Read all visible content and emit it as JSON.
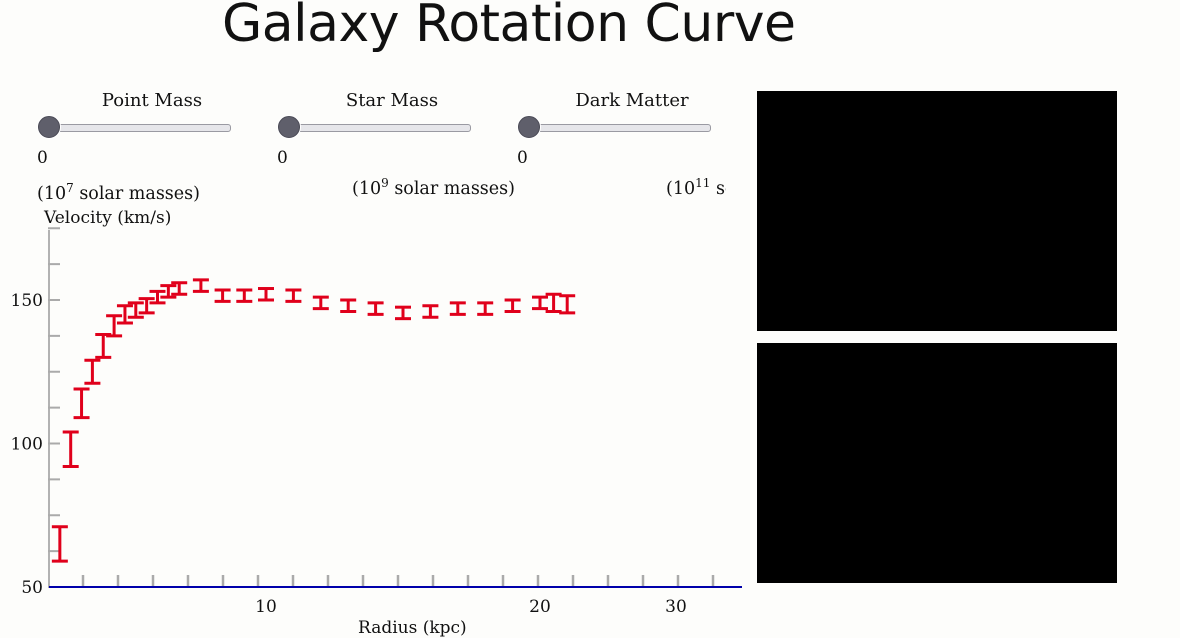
{
  "title": "Galaxy Rotation Curve",
  "sliders": [
    {
      "label": "Point Mass",
      "value": "0",
      "units_base": "(10",
      "units_exp": "7",
      "units_suffix": " solar masses)"
    },
    {
      "label": "Star Mass",
      "value": "0",
      "units_base": "(10",
      "units_exp": "9",
      "units_suffix": " solar masses)"
    },
    {
      "label": "Dark Matter",
      "value": "0",
      "units_base": "(10",
      "units_exp": "11",
      "units_suffix": " solar masses)"
    }
  ],
  "colors": {
    "points": "#e0001b",
    "x_axis": "#0000aa",
    "y_axis": "#999999",
    "ticks": "#aaaaaa",
    "panel": "#000000"
  },
  "chart_data": {
    "type": "scatter",
    "xlabel": "Radius (kpc)",
    "ylabel": "Velocity (km/s)",
    "x_ticks": [
      10,
      20,
      30
    ],
    "y_ticks": [
      50,
      100,
      150
    ],
    "ylim": [
      50,
      175
    ],
    "points": [
      {
        "x": 0.5,
        "y": 65,
        "err": 6
      },
      {
        "x": 1.0,
        "y": 98,
        "err": 6
      },
      {
        "x": 1.5,
        "y": 114,
        "err": 5
      },
      {
        "x": 2.0,
        "y": 125,
        "err": 4
      },
      {
        "x": 2.5,
        "y": 134,
        "err": 4
      },
      {
        "x": 3.0,
        "y": 141,
        "err": 3.5
      },
      {
        "x": 3.5,
        "y": 145,
        "err": 3
      },
      {
        "x": 4.0,
        "y": 146.5,
        "err": 2.5
      },
      {
        "x": 4.5,
        "y": 148,
        "err": 2.5
      },
      {
        "x": 5.0,
        "y": 151,
        "err": 2
      },
      {
        "x": 5.5,
        "y": 153,
        "err": 2
      },
      {
        "x": 6.0,
        "y": 154,
        "err": 2
      },
      {
        "x": 7.0,
        "y": 155,
        "err": 2
      },
      {
        "x": 8.0,
        "y": 151.5,
        "err": 2
      },
      {
        "x": 9.0,
        "y": 151.5,
        "err": 2
      },
      {
        "x": 10.0,
        "y": 152,
        "err": 2
      },
      {
        "x": 11.0,
        "y": 151.5,
        "err": 2
      },
      {
        "x": 12.0,
        "y": 149,
        "err": 2
      },
      {
        "x": 13.0,
        "y": 148,
        "err": 2
      },
      {
        "x": 14.0,
        "y": 147,
        "err": 2
      },
      {
        "x": 15.0,
        "y": 145.5,
        "err": 2
      },
      {
        "x": 16.0,
        "y": 146,
        "err": 2
      },
      {
        "x": 17.0,
        "y": 147,
        "err": 2
      },
      {
        "x": 18.0,
        "y": 147,
        "err": 2
      },
      {
        "x": 19.0,
        "y": 148,
        "err": 2
      },
      {
        "x": 20.0,
        "y": 149,
        "err": 2
      },
      {
        "x": 21.0,
        "y": 149,
        "err": 3
      },
      {
        "x": 22.0,
        "y": 148.5,
        "err": 3
      }
    ]
  }
}
